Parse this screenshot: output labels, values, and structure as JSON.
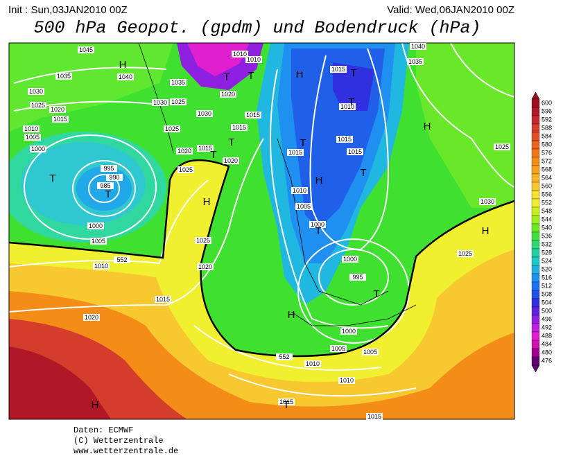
{
  "header": {
    "init": "Init : Sun,03JAN2010 00Z",
    "valid": "Valid: Wed,06JAN2010 00Z",
    "title": "500 hPa Geopot. (gpdm) und Bodendruck (hPa)"
  },
  "map": {
    "labels": [
      {
        "text": "1045"
      },
      {
        "text": "1040"
      },
      {
        "text": "1035"
      },
      {
        "text": "1030"
      },
      {
        "text": "1025"
      },
      {
        "text": "1020"
      },
      {
        "text": "1015"
      },
      {
        "text": "1010"
      },
      {
        "text": "1005"
      },
      {
        "text": "1000"
      },
      {
        "text": "995"
      },
      {
        "text": "990"
      },
      {
        "text": "985"
      },
      {
        "text": "1000"
      },
      {
        "text": "1005"
      },
      {
        "text": "1010"
      },
      {
        "text": "1015"
      },
      {
        "text": "1020"
      },
      {
        "text": "1030"
      },
      {
        "text": "1025"
      },
      {
        "text": "1030"
      },
      {
        "text": "1025"
      },
      {
        "text": "1020"
      },
      {
        "text": "1015"
      },
      {
        "text": "1020"
      },
      {
        "text": "1025"
      },
      {
        "text": "1035"
      },
      {
        "text": "1010"
      },
      {
        "text": "1010"
      },
      {
        "text": "1020"
      },
      {
        "text": "1015"
      },
      {
        "text": "1015"
      },
      {
        "text": "1015"
      },
      {
        "text": "1010"
      },
      {
        "text": "1005"
      },
      {
        "text": "1000"
      },
      {
        "text": "1025"
      },
      {
        "text": "1020"
      },
      {
        "text": "1015"
      },
      {
        "text": "1010"
      },
      {
        "text": "1015"
      },
      {
        "text": "1015"
      },
      {
        "text": "1000"
      },
      {
        "text": "995"
      },
      {
        "text": "1000"
      },
      {
        "text": "1005"
      },
      {
        "text": "1010"
      },
      {
        "text": "1010"
      },
      {
        "text": "1005"
      },
      {
        "text": "1015"
      },
      {
        "text": "1015"
      },
      {
        "text": "1040"
      },
      {
        "text": "1035"
      },
      {
        "text": "1030"
      },
      {
        "text": "1025"
      },
      {
        "text": "1025"
      },
      {
        "text": "552"
      },
      {
        "text": "552"
      },
      {
        "text": "H"
      },
      {
        "text": "T"
      },
      {
        "text": "T"
      },
      {
        "text": "H"
      },
      {
        "text": "T"
      },
      {
        "text": "T"
      },
      {
        "text": "H"
      },
      {
        "text": "T"
      },
      {
        "text": "T"
      },
      {
        "text": "H"
      },
      {
        "text": "T"
      },
      {
        "text": "T"
      },
      {
        "text": "H"
      },
      {
        "text": "T"
      },
      {
        "text": "T"
      },
      {
        "text": "H"
      },
      {
        "text": "H"
      },
      {
        "text": "H"
      },
      {
        "text": "T"
      },
      {
        "text": "T"
      },
      {
        "text": "T"
      }
    ]
  },
  "colorbar": {
    "labels": [
      {
        "label": "600",
        "color": "#9b1020"
      },
      {
        "label": "596",
        "color": "#b01828"
      },
      {
        "label": "592",
        "color": "#c42830"
      },
      {
        "label": "588",
        "color": "#d43c2c"
      },
      {
        "label": "584",
        "color": "#e05028"
      },
      {
        "label": "580",
        "color": "#e86420"
      },
      {
        "label": "576",
        "color": "#f07818"
      },
      {
        "label": "572",
        "color": "#f48c18"
      },
      {
        "label": "568",
        "color": "#f8a020"
      },
      {
        "label": "564",
        "color": "#f8b428"
      },
      {
        "label": "560",
        "color": "#f8c830"
      },
      {
        "label": "556",
        "color": "#f8e030"
      },
      {
        "label": "552",
        "color": "#f0f030"
      },
      {
        "label": "548",
        "color": "#c8f020"
      },
      {
        "label": "544",
        "color": "#a0f020"
      },
      {
        "label": "540",
        "color": "#70e820"
      },
      {
        "label": "536",
        "color": "#40e040"
      },
      {
        "label": "532",
        "color": "#30d870"
      },
      {
        "label": "528",
        "color": "#20d0a0"
      },
      {
        "label": "524",
        "color": "#20c8c8"
      },
      {
        "label": "520",
        "color": "#20b0e0"
      },
      {
        "label": "516",
        "color": "#2090f0"
      },
      {
        "label": "512",
        "color": "#2070f0"
      },
      {
        "label": "508",
        "color": "#2050e8"
      },
      {
        "label": "504",
        "color": "#3030e0"
      },
      {
        "label": "500",
        "color": "#6020e0"
      },
      {
        "label": "496",
        "color": "#9020e0"
      },
      {
        "label": "492",
        "color": "#c020e0"
      },
      {
        "label": "488",
        "color": "#e020d0"
      },
      {
        "label": "484",
        "color": "#d010b0"
      },
      {
        "label": "480",
        "color": "#a00090"
      },
      {
        "label": "476",
        "color": "#600070"
      }
    ]
  },
  "footer": {
    "source": "Daten: ECMWF",
    "copyright": "(C) Wetterzentrale",
    "url": "www.wetterzentrale.de"
  }
}
